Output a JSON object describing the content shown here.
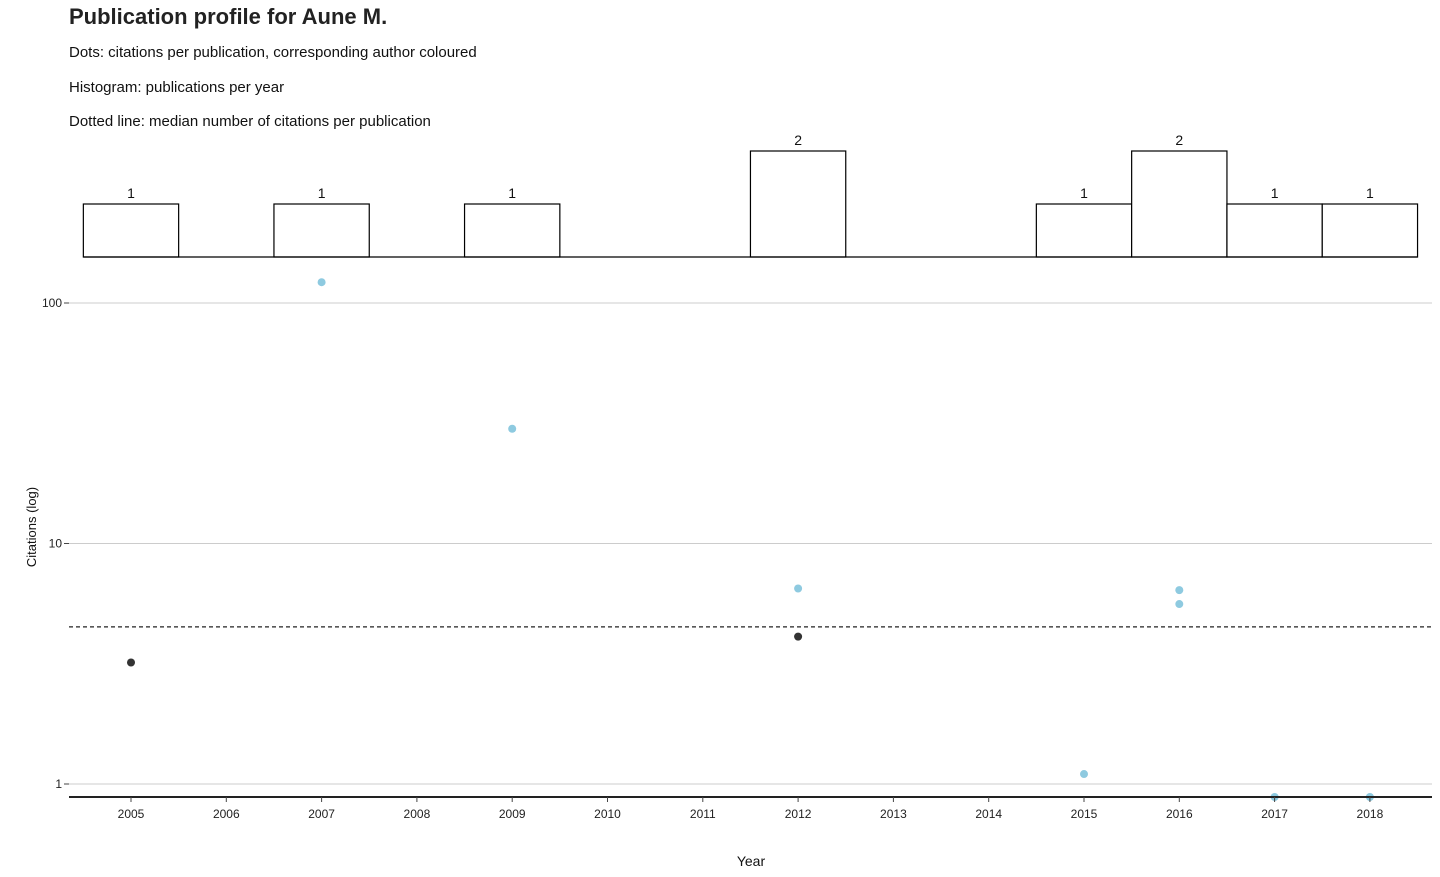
{
  "title": "Publication profile for Aune M.",
  "subtitles": [
    "Dots: citations per publication, corresponding author coloured",
    "Histogram: publications per year",
    "Dotted line: median number of citations per publication"
  ],
  "colors": {
    "corresponding": "#8ecae0",
    "other": "#333333",
    "grid": "#cccccc",
    "axis": "#222222",
    "bar_fill": "#ffffff",
    "bar_stroke": "#000000"
  },
  "chart_data": {
    "type": "scatter",
    "xlabel": "Year",
    "ylabel": "Citations (log)",
    "y_scale": "log",
    "ylim": [
      0.88,
      155
    ],
    "y_ticks": [
      1,
      10,
      100
    ],
    "y_tick_labels": [
      "1",
      "10",
      "100"
    ],
    "x_ticks": [
      2005,
      2006,
      2007,
      2008,
      2009,
      2010,
      2011,
      2012,
      2013,
      2014,
      2015,
      2016,
      2017,
      2018
    ],
    "median_citations": 4.5,
    "grid": "horizontal",
    "points": [
      {
        "year": 2005,
        "citations": 3.2,
        "corresponding": false
      },
      {
        "year": 2007,
        "citations": 122,
        "corresponding": true
      },
      {
        "year": 2009,
        "citations": 30,
        "corresponding": true
      },
      {
        "year": 2012,
        "citations": 6.5,
        "corresponding": true
      },
      {
        "year": 2012,
        "citations": 4.1,
        "corresponding": false
      },
      {
        "year": 2015,
        "citations": 1.1,
        "corresponding": true
      },
      {
        "year": 2016,
        "citations": 6.4,
        "corresponding": true
      },
      {
        "year": 2016,
        "citations": 5.6,
        "corresponding": true
      },
      {
        "year": 2017,
        "citations": 0.88,
        "corresponding": true
      },
      {
        "year": 2018,
        "citations": 0.88,
        "corresponding": true
      }
    ],
    "histogram": {
      "years": [
        2005,
        2007,
        2009,
        2012,
        2015,
        2016,
        2017,
        2018
      ],
      "counts": [
        1,
        1,
        1,
        2,
        1,
        2,
        1,
        1
      ]
    }
  }
}
